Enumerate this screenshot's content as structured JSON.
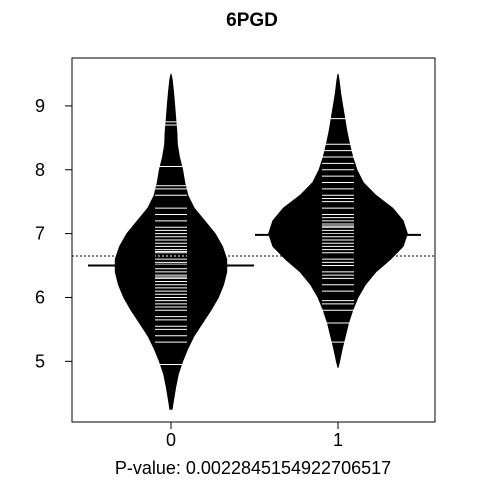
{
  "chart_data": {
    "type": "beanplot",
    "title": "6PGD",
    "xlabel": "P-value: 0.00228451549227065​17",
    "ylabel": "",
    "categories": [
      "0",
      "1"
    ],
    "ylim": [
      4.05,
      9.75
    ],
    "yticks": [
      5,
      6,
      7,
      8,
      9
    ],
    "overall_mean_line": 6.65,
    "groups": [
      {
        "name": "0",
        "mean": 6.5,
        "density": [
          [
            4.25,
            0.01
          ],
          [
            4.4,
            0.025
          ],
          [
            4.6,
            0.045
          ],
          [
            4.8,
            0.07
          ],
          [
            5.0,
            0.11
          ],
          [
            5.2,
            0.16
          ],
          [
            5.4,
            0.22
          ],
          [
            5.6,
            0.3
          ],
          [
            5.8,
            0.38
          ],
          [
            6.0,
            0.45
          ],
          [
            6.2,
            0.5
          ],
          [
            6.4,
            0.53
          ],
          [
            6.6,
            0.53
          ],
          [
            6.8,
            0.49
          ],
          [
            7.0,
            0.42
          ],
          [
            7.2,
            0.32
          ],
          [
            7.4,
            0.22
          ],
          [
            7.6,
            0.16
          ],
          [
            7.8,
            0.13
          ],
          [
            8.0,
            0.11
          ],
          [
            8.2,
            0.08
          ],
          [
            8.4,
            0.06
          ],
          [
            8.6,
            0.055
          ],
          [
            8.8,
            0.045
          ],
          [
            9.0,
            0.035
          ],
          [
            9.2,
            0.025
          ],
          [
            9.4,
            0.012
          ],
          [
            9.5,
            0.0
          ]
        ],
        "observations": [
          4.95,
          5.3,
          5.4,
          5.5,
          5.55,
          5.65,
          5.7,
          5.8,
          5.85,
          5.9,
          5.95,
          6.0,
          6.05,
          6.1,
          6.15,
          6.2,
          6.25,
          6.3,
          6.32,
          6.35,
          6.4,
          6.45,
          6.5,
          6.52,
          6.55,
          6.6,
          6.65,
          6.7,
          6.72,
          6.75,
          6.8,
          6.85,
          6.9,
          6.95,
          7.0,
          7.05,
          7.1,
          7.2,
          7.3,
          7.4,
          7.6,
          7.7,
          7.75,
          8.05,
          8.7,
          8.75
        ]
      },
      {
        "name": "1",
        "mean": 6.98,
        "density": [
          [
            4.9,
            0.0
          ],
          [
            5.0,
            0.015
          ],
          [
            5.2,
            0.04
          ],
          [
            5.4,
            0.07
          ],
          [
            5.6,
            0.1
          ],
          [
            5.8,
            0.14
          ],
          [
            6.0,
            0.19
          ],
          [
            6.2,
            0.26
          ],
          [
            6.4,
            0.36
          ],
          [
            6.6,
            0.5
          ],
          [
            6.8,
            0.62
          ],
          [
            7.0,
            0.66
          ],
          [
            7.2,
            0.62
          ],
          [
            7.4,
            0.52
          ],
          [
            7.6,
            0.36
          ],
          [
            7.8,
            0.24
          ],
          [
            8.0,
            0.18
          ],
          [
            8.2,
            0.14
          ],
          [
            8.4,
            0.11
          ],
          [
            8.6,
            0.085
          ],
          [
            8.8,
            0.065
          ],
          [
            9.0,
            0.045
          ],
          [
            9.2,
            0.025
          ],
          [
            9.4,
            0.01
          ],
          [
            9.5,
            0.0
          ]
        ],
        "observations": [
          5.3,
          5.6,
          5.8,
          5.9,
          5.95,
          6.1,
          6.2,
          6.3,
          6.35,
          6.4,
          6.5,
          6.55,
          6.6,
          6.7,
          6.75,
          6.8,
          6.85,
          6.9,
          6.95,
          7.0,
          7.05,
          7.1,
          7.12,
          7.15,
          7.2,
          7.25,
          7.3,
          7.4,
          7.5,
          7.55,
          7.6,
          7.7,
          7.8,
          7.9,
          8.0,
          8.1,
          8.2,
          8.3,
          8.4,
          8.8
        ]
      }
    ]
  }
}
